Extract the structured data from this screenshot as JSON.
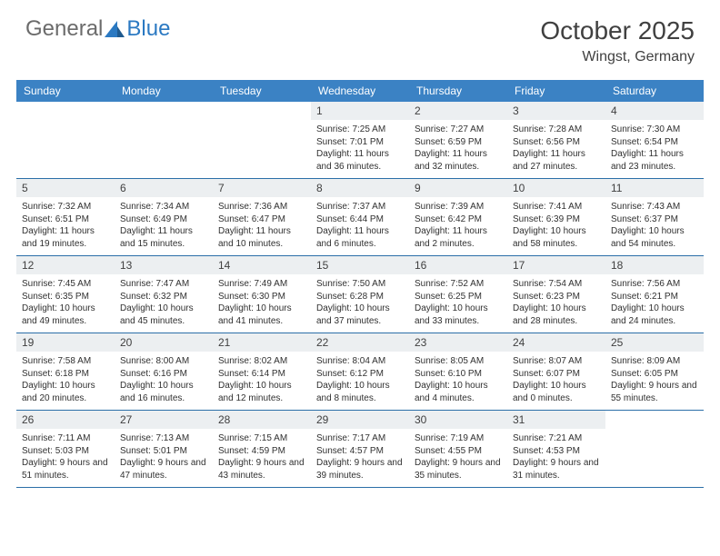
{
  "brand": {
    "general": "General",
    "blue": "Blue"
  },
  "title": "October 2025",
  "location": "Wingst, Germany",
  "colors": {
    "header_bg": "#3b82c4",
    "border": "#2b6fa8",
    "daynum_bg": "#eceff1",
    "text": "#404040",
    "body_text": "#303030",
    "brand_gray": "#6b6b6b",
    "brand_blue": "#2b79c2"
  },
  "daysOfWeek": [
    "Sunday",
    "Monday",
    "Tuesday",
    "Wednesday",
    "Thursday",
    "Friday",
    "Saturday"
  ],
  "weeksStructure": [
    [
      null,
      null,
      null,
      0,
      1,
      2,
      3
    ],
    [
      4,
      5,
      6,
      7,
      8,
      9,
      10
    ],
    [
      11,
      12,
      13,
      14,
      15,
      16,
      17
    ],
    [
      18,
      19,
      20,
      21,
      22,
      23,
      24
    ],
    [
      25,
      26,
      27,
      28,
      29,
      30,
      null
    ]
  ],
  "days": [
    {
      "n": "1",
      "sunrise": "7:25 AM",
      "sunset": "7:01 PM",
      "daylight": "11 hours and 36 minutes."
    },
    {
      "n": "2",
      "sunrise": "7:27 AM",
      "sunset": "6:59 PM",
      "daylight": "11 hours and 32 minutes."
    },
    {
      "n": "3",
      "sunrise": "7:28 AM",
      "sunset": "6:56 PM",
      "daylight": "11 hours and 27 minutes."
    },
    {
      "n": "4",
      "sunrise": "7:30 AM",
      "sunset": "6:54 PM",
      "daylight": "11 hours and 23 minutes."
    },
    {
      "n": "5",
      "sunrise": "7:32 AM",
      "sunset": "6:51 PM",
      "daylight": "11 hours and 19 minutes."
    },
    {
      "n": "6",
      "sunrise": "7:34 AM",
      "sunset": "6:49 PM",
      "daylight": "11 hours and 15 minutes."
    },
    {
      "n": "7",
      "sunrise": "7:36 AM",
      "sunset": "6:47 PM",
      "daylight": "11 hours and 10 minutes."
    },
    {
      "n": "8",
      "sunrise": "7:37 AM",
      "sunset": "6:44 PM",
      "daylight": "11 hours and 6 minutes."
    },
    {
      "n": "9",
      "sunrise": "7:39 AM",
      "sunset": "6:42 PM",
      "daylight": "11 hours and 2 minutes."
    },
    {
      "n": "10",
      "sunrise": "7:41 AM",
      "sunset": "6:39 PM",
      "daylight": "10 hours and 58 minutes."
    },
    {
      "n": "11",
      "sunrise": "7:43 AM",
      "sunset": "6:37 PM",
      "daylight": "10 hours and 54 minutes."
    },
    {
      "n": "12",
      "sunrise": "7:45 AM",
      "sunset": "6:35 PM",
      "daylight": "10 hours and 49 minutes."
    },
    {
      "n": "13",
      "sunrise": "7:47 AM",
      "sunset": "6:32 PM",
      "daylight": "10 hours and 45 minutes."
    },
    {
      "n": "14",
      "sunrise": "7:49 AM",
      "sunset": "6:30 PM",
      "daylight": "10 hours and 41 minutes."
    },
    {
      "n": "15",
      "sunrise": "7:50 AM",
      "sunset": "6:28 PM",
      "daylight": "10 hours and 37 minutes."
    },
    {
      "n": "16",
      "sunrise": "7:52 AM",
      "sunset": "6:25 PM",
      "daylight": "10 hours and 33 minutes."
    },
    {
      "n": "17",
      "sunrise": "7:54 AM",
      "sunset": "6:23 PM",
      "daylight": "10 hours and 28 minutes."
    },
    {
      "n": "18",
      "sunrise": "7:56 AM",
      "sunset": "6:21 PM",
      "daylight": "10 hours and 24 minutes."
    },
    {
      "n": "19",
      "sunrise": "7:58 AM",
      "sunset": "6:18 PM",
      "daylight": "10 hours and 20 minutes."
    },
    {
      "n": "20",
      "sunrise": "8:00 AM",
      "sunset": "6:16 PM",
      "daylight": "10 hours and 16 minutes."
    },
    {
      "n": "21",
      "sunrise": "8:02 AM",
      "sunset": "6:14 PM",
      "daylight": "10 hours and 12 minutes."
    },
    {
      "n": "22",
      "sunrise": "8:04 AM",
      "sunset": "6:12 PM",
      "daylight": "10 hours and 8 minutes."
    },
    {
      "n": "23",
      "sunrise": "8:05 AM",
      "sunset": "6:10 PM",
      "daylight": "10 hours and 4 minutes."
    },
    {
      "n": "24",
      "sunrise": "8:07 AM",
      "sunset": "6:07 PM",
      "daylight": "10 hours and 0 minutes."
    },
    {
      "n": "25",
      "sunrise": "8:09 AM",
      "sunset": "6:05 PM",
      "daylight": "9 hours and 55 minutes."
    },
    {
      "n": "26",
      "sunrise": "7:11 AM",
      "sunset": "5:03 PM",
      "daylight": "9 hours and 51 minutes."
    },
    {
      "n": "27",
      "sunrise": "7:13 AM",
      "sunset": "5:01 PM",
      "daylight": "9 hours and 47 minutes."
    },
    {
      "n": "28",
      "sunrise": "7:15 AM",
      "sunset": "4:59 PM",
      "daylight": "9 hours and 43 minutes."
    },
    {
      "n": "29",
      "sunrise": "7:17 AM",
      "sunset": "4:57 PM",
      "daylight": "9 hours and 39 minutes."
    },
    {
      "n": "30",
      "sunrise": "7:19 AM",
      "sunset": "4:55 PM",
      "daylight": "9 hours and 35 minutes."
    },
    {
      "n": "31",
      "sunrise": "7:21 AM",
      "sunset": "4:53 PM",
      "daylight": "9 hours and 31 minutes."
    }
  ],
  "labels": {
    "sunrise": "Sunrise:",
    "sunset": "Sunset:",
    "daylight": "Daylight:"
  }
}
